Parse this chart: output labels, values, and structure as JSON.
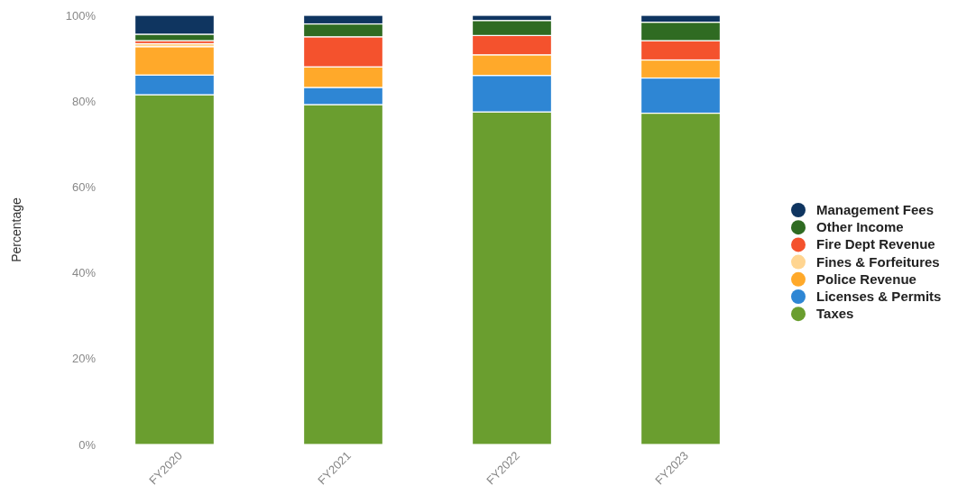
{
  "chart_data": {
    "type": "bar",
    "stacked": true,
    "ylabel": "Percentage",
    "categories": [
      "FY2020",
      "FY2021",
      "FY2022",
      "FY2023"
    ],
    "series": [
      {
        "name": "Taxes",
        "color": "#6a9e2f",
        "values": [
          81.5,
          79.2,
          77.5,
          77.2
        ]
      },
      {
        "name": "Licenses & Permits",
        "color": "#2e86d4",
        "values": [
          4.6,
          4.0,
          8.5,
          8.2
        ]
      },
      {
        "name": "Police Revenue",
        "color": "#ffa92a",
        "values": [
          6.6,
          4.8,
          4.8,
          4.2
        ]
      },
      {
        "name": "Fines & Forfeitures",
        "color": "#ffd591",
        "values": [
          0.7,
          null,
          null,
          null
        ]
      },
      {
        "name": "Fire Dept Revenue",
        "color": "#f4522d",
        "values": [
          0.7,
          7.0,
          4.5,
          4.5
        ]
      },
      {
        "name": "Other Income",
        "color": "#2f6b22",
        "values": [
          1.5,
          3.0,
          3.5,
          4.3
        ]
      },
      {
        "name": "Management Fees",
        "color": "#0f3560",
        "values": [
          4.4,
          2.0,
          1.2,
          1.6
        ]
      }
    ],
    "ylim": [
      0,
      100
    ],
    "yticks": [
      {
        "value": 0,
        "label": "0%"
      },
      {
        "value": 20,
        "label": "20%"
      },
      {
        "value": 40,
        "label": "40%"
      },
      {
        "value": 60,
        "label": "60%"
      },
      {
        "value": 80,
        "label": "80%"
      },
      {
        "value": 100,
        "label": "100%"
      }
    ],
    "legend": "right"
  }
}
